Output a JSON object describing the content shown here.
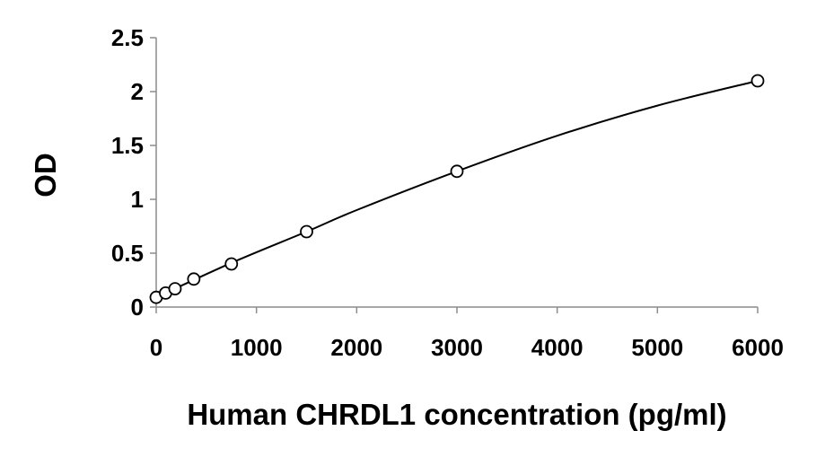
{
  "chart_data": {
    "type": "scatter",
    "title": "",
    "xlabel": "Human CHRDL1 concentration (pg/ml)",
    "ylabel": "OD",
    "xlim": [
      0,
      6000
    ],
    "ylim": [
      0,
      2.5
    ],
    "x_ticks": [
      0,
      1000,
      2000,
      3000,
      4000,
      5000,
      6000
    ],
    "x_tick_labels": [
      "0",
      "1000",
      "2000",
      "3000",
      "4000",
      "5000",
      "6000"
    ],
    "y_ticks": [
      0,
      0.5,
      1,
      1.5,
      2,
      2.5
    ],
    "y_tick_labels": [
      "0",
      "0.5",
      "1",
      "1.5",
      "2",
      "2.5"
    ],
    "grid": false,
    "legend": "none",
    "series": [
      {
        "x": [
          0,
          94,
          188,
          375,
          750,
          1500,
          3000,
          6000
        ],
        "y": [
          0.09,
          0.13,
          0.17,
          0.26,
          0.4,
          0.7,
          1.26,
          2.1
        ],
        "marker": "open-circle",
        "color": "#000000"
      }
    ],
    "trendline": {
      "type": "smooth-curve",
      "x": [
        0,
        750,
        1500,
        2000,
        3000,
        4000,
        5000,
        6000
      ],
      "y": [
        0.09,
        0.41,
        0.7,
        0.9,
        1.26,
        1.59,
        1.87,
        2.1
      ],
      "color": "#000000"
    }
  }
}
